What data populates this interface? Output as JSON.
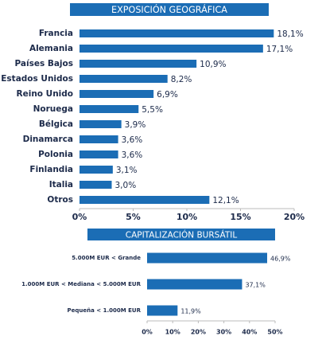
{
  "chart_data": [
    {
      "type": "bar",
      "orientation": "horizontal",
      "title": "EXPOSICIÓN GEOGRÁFICA",
      "categories": [
        "Francia",
        "Alemania",
        "Países Bajos",
        "Estados Unidos",
        "Reino Unido",
        "Noruega",
        "Bélgica",
        "Dinamarca",
        "Polonia",
        "Finlandia",
        "Italia",
        "Otros"
      ],
      "values": [
        18.1,
        17.1,
        10.9,
        8.2,
        6.9,
        5.5,
        3.9,
        3.6,
        3.6,
        3.1,
        3.0,
        12.1
      ],
      "value_labels": [
        "18,1%",
        "17,1%",
        "10,9%",
        "8,2%",
        "6,9%",
        "5,5%",
        "3,9%",
        "3,6%",
        "3,6%",
        "3,1%",
        "3,0%",
        "12,1%"
      ],
      "color": "#1b6db5",
      "xlim": [
        0,
        20
      ],
      "xticks": [
        {
          "value": 0,
          "label": "0%"
        },
        {
          "value": 5,
          "label": "5%"
        },
        {
          "value": 10,
          "label": "10%"
        },
        {
          "value": 15,
          "label": "15%"
        },
        {
          "value": 20,
          "label": "20%"
        }
      ]
    },
    {
      "type": "bar",
      "orientation": "horizontal",
      "title": "CAPITALIZACIÓN BURSÁTIL",
      "categories": [
        "5.000M EUR < Grande",
        "1.000M EUR < Mediana < 5.000M EUR",
        "Pequeña < 1.000M EUR"
      ],
      "values": [
        46.9,
        37.1,
        11.9
      ],
      "value_labels": [
        "46,9%",
        "37,1%",
        "11,9%"
      ],
      "color": "#1b6db5",
      "xlim": [
        0,
        50
      ],
      "xticks": [
        {
          "value": 0,
          "label": "0%"
        },
        {
          "value": 10,
          "label": "10%"
        },
        {
          "value": 20,
          "label": "20%"
        },
        {
          "value": 30,
          "label": "30%"
        },
        {
          "value": 40,
          "label": "40%"
        },
        {
          "value": 50,
          "label": "50%"
        }
      ]
    }
  ]
}
